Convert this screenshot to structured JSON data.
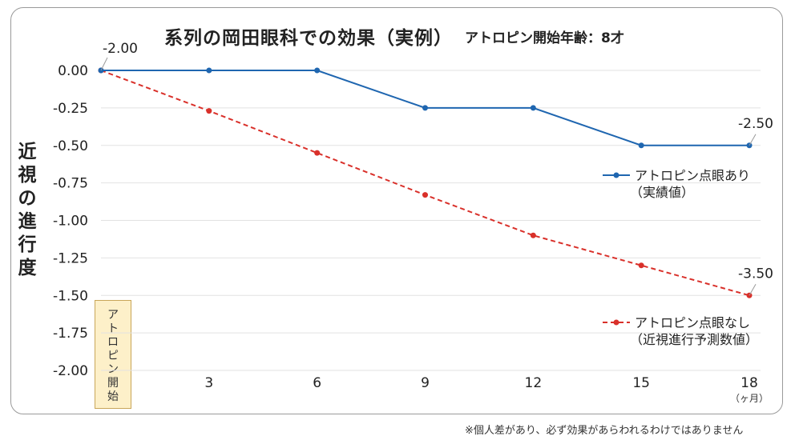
{
  "chart_data": {
    "type": "line",
    "title": "系列の岡田眼科での効果（実例）",
    "subtitle": "アトロピン開始年齢：8才",
    "ylabel": "近視の進行度",
    "xunit": "（ヶ月）",
    "x": [
      0,
      3,
      6,
      9,
      12,
      15,
      18
    ],
    "xticks": [
      "3",
      "6",
      "9",
      "12",
      "15",
      "18"
    ],
    "ylim": [
      -2.0,
      0.0
    ],
    "yticks": [
      "0.00",
      "-0.25",
      "-0.50",
      "-0.75",
      "-1.00",
      "-1.25",
      "-1.50",
      "-1.75",
      "-2.00"
    ],
    "series": [
      {
        "name": "アトロピン点眼あり（実績値）",
        "name_lines": [
          "アトロピン点眼あり",
          "（実績値）"
        ],
        "style": "solid",
        "color": "#1f66b0",
        "values": [
          0,
          0,
          0,
          -0.25,
          -0.25,
          -0.5,
          -0.5
        ]
      },
      {
        "name": "アトロピン点眼なし（近視進行予測数値）",
        "name_lines": [
          "アトロピン点眼なし",
          "（近視進行予測数値）"
        ],
        "style": "dashed",
        "color": "#d9302a",
        "values": [
          0,
          -0.27,
          -0.55,
          -0.83,
          -1.1,
          -1.3,
          -1.5
        ]
      }
    ],
    "annotations": [
      {
        "text": "-2.00",
        "x": 0,
        "y": 0
      },
      {
        "text": "-2.50",
        "x": 18,
        "y": -0.5
      },
      {
        "text": "-3.50",
        "x": 18,
        "y": -1.5
      }
    ],
    "start_marker": {
      "text": "アトロピン開始",
      "x": 0
    },
    "grid": true
  },
  "footnote": "※個人差があり、必ず効果があらわれるわけではありません"
}
